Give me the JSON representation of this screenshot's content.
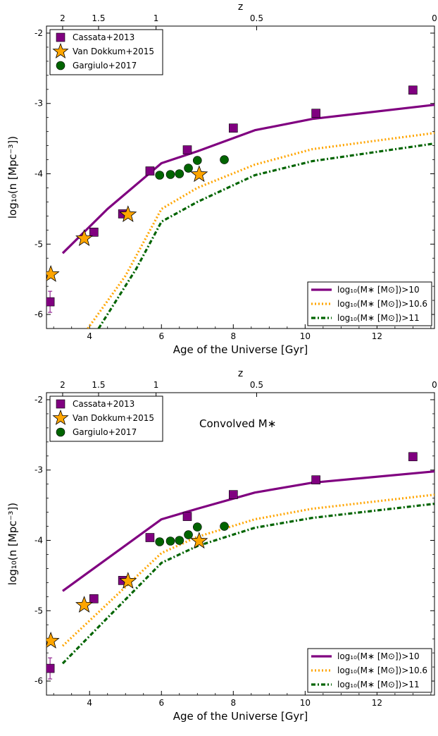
{
  "chart_data": [
    {
      "type": "scatter+line",
      "title": "",
      "annotation": "",
      "xlabel": "Age of the Universe [Gyr]",
      "ylabel": "log₁₀(n [Mpc⁻³])",
      "top_axis_label": "z",
      "xlim": [
        2.8,
        13.6
      ],
      "ylim": [
        -6.2,
        -1.9
      ],
      "x_ticks": [
        4,
        6,
        8,
        10,
        12
      ],
      "y_ticks": [
        -6,
        -5,
        -4,
        -3,
        -2
      ],
      "top_ticks": [
        {
          "z": 2,
          "age": 3.25,
          "label": "2"
        },
        {
          "z": 1.5,
          "age": 4.25,
          "label": "1.5"
        },
        {
          "z": 1,
          "age": 5.85,
          "label": "1"
        },
        {
          "z": 0.5,
          "age": 8.65,
          "label": "0.5"
        },
        {
          "z": 0,
          "age": 13.6,
          "label": "0"
        }
      ],
      "legend_upper": [
        {
          "name": "Cassata+2013",
          "marker": "square",
          "color": "#800080"
        },
        {
          "name": "Van Dokkum+2015",
          "marker": "star",
          "color": "#FFA500"
        },
        {
          "name": "Gargiulo+2017",
          "marker": "circle",
          "color": "#006400"
        }
      ],
      "points": {
        "cassata": [
          {
            "x": 2.9,
            "y": -5.82,
            "err": 0.15
          },
          {
            "x": 4.12,
            "y": -4.83,
            "err": 0.05
          },
          {
            "x": 4.92,
            "y": -4.57,
            "err": 0.05
          },
          {
            "x": 5.68,
            "y": -3.96,
            "err": 0.03
          },
          {
            "x": 6.72,
            "y": -3.66,
            "err": 0.03
          },
          {
            "x": 8.0,
            "y": -3.35,
            "err": 0.03
          },
          {
            "x": 10.3,
            "y": -3.14,
            "err": 0.03
          },
          {
            "x": 13.0,
            "y": -2.81,
            "err": 0.03
          }
        ],
        "vandokkum": [
          {
            "x": 2.92,
            "y": -5.43
          },
          {
            "x": 3.85,
            "y": -4.92
          },
          {
            "x": 5.07,
            "y": -4.58
          },
          {
            "x": 7.05,
            "y": -4.01
          }
        ],
        "gargiulo": [
          {
            "x": 5.95,
            "y": -4.02
          },
          {
            "x": 6.25,
            "y": -4.01
          },
          {
            "x": 6.5,
            "y": -4.0
          },
          {
            "x": 6.75,
            "y": -3.92
          },
          {
            "x": 7.0,
            "y": -3.81
          },
          {
            "x": 7.75,
            "y": -3.8
          }
        ]
      },
      "series": [
        {
          "name": "log₁₀(M∗ [M⊙])>10",
          "style": "solid",
          "color": "#800080",
          "x": [
            3.25,
            4.5,
            6.0,
            7.0,
            8.6,
            10.2,
            13.6
          ],
          "y": [
            -5.13,
            -4.5,
            -3.85,
            -3.68,
            -3.38,
            -3.22,
            -3.02
          ]
        },
        {
          "name": "log₁₀(M∗ [M⊙])>10.6",
          "style": "dotted",
          "color": "#FFA500",
          "x": [
            3.95,
            5.0,
            6.0,
            7.0,
            8.6,
            10.2,
            13.6
          ],
          "y": [
            -6.2,
            -5.45,
            -4.5,
            -4.2,
            -3.87,
            -3.65,
            -3.42
          ]
        },
        {
          "name": "log₁₀(M∗ [M⊙])>11",
          "style": "dashdot",
          "color": "#006400",
          "x": [
            4.25,
            5.3,
            6.0,
            7.0,
            8.6,
            10.2,
            13.6
          ],
          "y": [
            -6.2,
            -5.35,
            -4.68,
            -4.4,
            -4.02,
            -3.82,
            -3.57
          ]
        }
      ],
      "legend_lower": [
        {
          "name": "log₁₀(M∗ [M⊙])>10",
          "style": "solid",
          "color": "#800080"
        },
        {
          "name": "log₁₀(M∗ [M⊙])>10.6",
          "style": "dotted",
          "color": "#FFA500"
        },
        {
          "name": "log₁₀(M∗ [M⊙])>11",
          "style": "dashdot",
          "color": "#006400"
        }
      ]
    },
    {
      "type": "scatter+line",
      "title": "",
      "annotation": "Convolved M∗",
      "xlabel": "Age of the Universe [Gyr]",
      "ylabel": "log₁₀(n [Mpc⁻³])",
      "top_axis_label": "z",
      "xlim": [
        2.8,
        13.6
      ],
      "ylim": [
        -6.2,
        -1.9
      ],
      "x_ticks": [
        4,
        6,
        8,
        10,
        12
      ],
      "y_ticks": [
        -6,
        -5,
        -4,
        -3,
        -2
      ],
      "top_ticks": [
        {
          "z": 2,
          "age": 3.25,
          "label": "2"
        },
        {
          "z": 1.5,
          "age": 4.25,
          "label": "1.5"
        },
        {
          "z": 1,
          "age": 5.85,
          "label": "1"
        },
        {
          "z": 0.5,
          "age": 8.65,
          "label": "0.5"
        },
        {
          "z": 0,
          "age": 13.6,
          "label": "0"
        }
      ],
      "legend_upper": [
        {
          "name": "Cassata+2013",
          "marker": "square",
          "color": "#800080"
        },
        {
          "name": "Van Dokkum+2015",
          "marker": "star",
          "color": "#FFA500"
        },
        {
          "name": "Gargiulo+2017",
          "marker": "circle",
          "color": "#006400"
        }
      ],
      "points": {
        "cassata": [
          {
            "x": 2.9,
            "y": -5.82,
            "err": 0.15
          },
          {
            "x": 4.12,
            "y": -4.83,
            "err": 0.05
          },
          {
            "x": 4.92,
            "y": -4.57,
            "err": 0.05
          },
          {
            "x": 5.68,
            "y": -3.96,
            "err": 0.03
          },
          {
            "x": 6.72,
            "y": -3.66,
            "err": 0.03
          },
          {
            "x": 8.0,
            "y": -3.35,
            "err": 0.03
          },
          {
            "x": 10.3,
            "y": -3.14,
            "err": 0.03
          },
          {
            "x": 13.0,
            "y": -2.81,
            "err": 0.03
          }
        ],
        "vandokkum": [
          {
            "x": 2.92,
            "y": -5.43
          },
          {
            "x": 3.85,
            "y": -4.92
          },
          {
            "x": 5.07,
            "y": -4.58
          },
          {
            "x": 7.05,
            "y": -4.01
          }
        ],
        "gargiulo": [
          {
            "x": 5.95,
            "y": -4.02
          },
          {
            "x": 6.25,
            "y": -4.01
          },
          {
            "x": 6.5,
            "y": -4.0
          },
          {
            "x": 6.75,
            "y": -3.92
          },
          {
            "x": 7.0,
            "y": -3.81
          },
          {
            "x": 7.75,
            "y": -3.8
          }
        ]
      },
      "series": [
        {
          "name": "log₁₀(M∗ [M⊙])>10",
          "style": "solid",
          "color": "#800080",
          "x": [
            3.25,
            6.0,
            7.0,
            8.6,
            10.2,
            13.6
          ],
          "y": [
            -4.72,
            -3.7,
            -3.55,
            -3.32,
            -3.18,
            -3.02
          ]
        },
        {
          "name": "log₁₀(M∗ [M⊙])>10.6",
          "style": "dotted",
          "color": "#FFA500",
          "x": [
            3.25,
            6.0,
            7.0,
            8.6,
            10.2,
            13.6
          ],
          "y": [
            -5.5,
            -4.18,
            -3.95,
            -3.7,
            -3.55,
            -3.35
          ]
        },
        {
          "name": "log₁₀(M∗ [M⊙])>11",
          "style": "dashdot",
          "color": "#006400",
          "x": [
            3.25,
            6.0,
            7.0,
            8.6,
            10.2,
            13.6
          ],
          "y": [
            -5.75,
            -4.32,
            -4.08,
            -3.82,
            -3.68,
            -3.48
          ]
        }
      ],
      "legend_lower": [
        {
          "name": "log₁₀(M∗ [M⊙])>10",
          "style": "solid",
          "color": "#800080"
        },
        {
          "name": "log₁₀(M∗ [M⊙])>10.6",
          "style": "dotted",
          "color": "#FFA500"
        },
        {
          "name": "log₁₀(M∗ [M⊙])>11",
          "style": "dashdot",
          "color": "#006400"
        }
      ]
    }
  ]
}
